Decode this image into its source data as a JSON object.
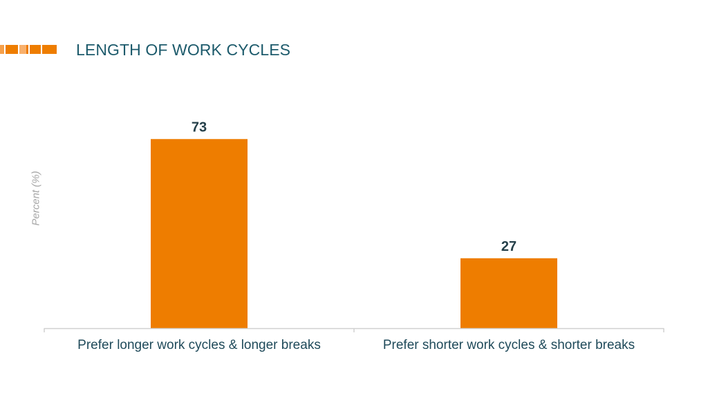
{
  "page_title": "LENGTH OF WORK CYCLES",
  "colors": {
    "bar": "#ee7d00",
    "title": "#1c5a6b",
    "accent_strip": [
      "#f6a04b",
      "#ee7d00",
      "#f8b06c",
      "#ee7d00",
      "#f6a04b",
      "#ee7d00"
    ]
  },
  "chart_data": {
    "type": "bar",
    "title": "LENGTH OF WORK CYCLES",
    "xlabel": "",
    "ylabel": "Percent (%)",
    "categories": [
      "Prefer longer work cycles & longer breaks",
      "Prefer shorter work cycles & shorter breaks"
    ],
    "values": [
      73,
      27
    ],
    "data_labels": [
      "73",
      "27"
    ],
    "ylim": [
      0,
      100
    ],
    "grid": false,
    "legend": "none"
  }
}
